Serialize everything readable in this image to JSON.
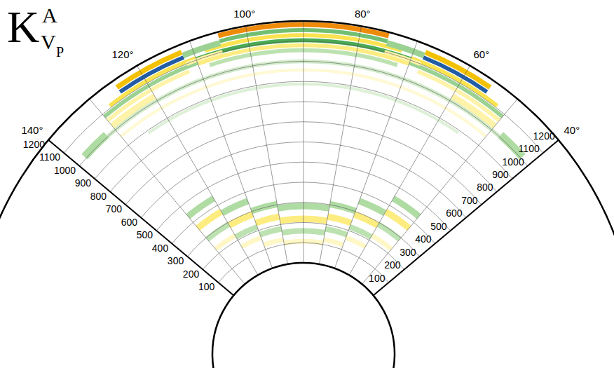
{
  "chart_data": {
    "type": "polar_heatmap",
    "title": {
      "text": "K",
      "superscript": "A",
      "subscript": "V",
      "subsubscript": "P"
    },
    "angle_lim": [
      40,
      140
    ],
    "angle_ticks": [
      {
        "value": 40,
        "label": "40°"
      },
      {
        "value": 60,
        "label": "60°"
      },
      {
        "value": 80,
        "label": "80°"
      },
      {
        "value": 100,
        "label": "100°"
      },
      {
        "value": 120,
        "label": "120°"
      },
      {
        "value": 140,
        "label": "140°"
      }
    ],
    "radius_lim": [
      0,
      1200
    ],
    "radius_ticks": [
      100,
      200,
      300,
      400,
      500,
      600,
      700,
      800,
      900,
      1000,
      1100,
      1200
    ],
    "grid": true,
    "tick_labels": true,
    "color_range": [
      -1,
      1
    ],
    "colors": [
      "#1b3fd0",
      "#2e9e3e",
      "#b6dfa8",
      "#ffffff",
      "#fff2a0",
      "#f5d300",
      "#e5201a"
    ],
    "cells": [
      [
        1170,
        1195,
        75,
        105,
        0.8
      ],
      [
        1145,
        1165,
        75,
        105,
        -0.5
      ],
      [
        1120,
        1140,
        72,
        108,
        0.5
      ],
      [
        1095,
        1115,
        70,
        110,
        -0.6
      ],
      [
        1070,
        1090,
        70,
        110,
        0.4
      ],
      [
        1045,
        1065,
        72,
        108,
        -0.3
      ],
      [
        1150,
        1175,
        55,
        68,
        0.7
      ],
      [
        1125,
        1145,
        55,
        68,
        -0.9
      ],
      [
        1100,
        1120,
        52,
        70,
        0.5
      ],
      [
        1075,
        1095,
        50,
        70,
        -0.4
      ],
      [
        1050,
        1070,
        50,
        68,
        0.3
      ],
      [
        1150,
        1175,
        112,
        125,
        0.7
      ],
      [
        1125,
        1145,
        112,
        125,
        -0.9
      ],
      [
        1100,
        1120,
        110,
        128,
        0.5
      ],
      [
        1075,
        1095,
        110,
        130,
        -0.4
      ],
      [
        1050,
        1070,
        112,
        130,
        0.3
      ],
      [
        1130,
        1160,
        68,
        75,
        -0.4
      ],
      [
        1090,
        1110,
        68,
        75,
        0.3
      ],
      [
        1130,
        1160,
        105,
        112,
        -0.4
      ],
      [
        1090,
        1110,
        105,
        112,
        0.3
      ],
      [
        1000,
        1040,
        120,
        130,
        0.3
      ],
      [
        1000,
        1040,
        50,
        60,
        0.3
      ],
      [
        990,
        1010,
        48,
        132,
        -0.2
      ],
      [
        950,
        965,
        50,
        130,
        0.15
      ],
      [
        880,
        895,
        55,
        125,
        -0.15
      ],
      [
        990,
        1030,
        132,
        138,
        -0.35
      ],
      [
        990,
        1030,
        42,
        48,
        -0.35
      ],
      [
        423,
        455,
        50,
        60,
        -0.35
      ],
      [
        339,
        371,
        60,
        70,
        -0.35
      ],
      [
        287,
        319,
        70,
        80,
        -0.35
      ],
      [
        266,
        298,
        80,
        90,
        -0.35
      ],
      [
        266,
        298,
        90,
        100,
        -0.35
      ],
      [
        287,
        319,
        100,
        110,
        -0.35
      ],
      [
        339,
        371,
        110,
        120,
        -0.35
      ],
      [
        423,
        455,
        120,
        130,
        -0.35
      ],
      [
        347,
        379,
        50,
        60,
        0.4
      ],
      [
        269,
        301,
        60,
        70,
        0.4
      ],
      [
        224,
        256,
        70,
        80,
        0.4
      ],
      [
        203,
        235,
        80,
        90,
        0.4
      ],
      [
        203,
        235,
        90,
        100,
        0.4
      ],
      [
        224,
        256,
        100,
        110,
        0.4
      ],
      [
        269,
        301,
        110,
        120,
        0.4
      ],
      [
        347,
        379,
        120,
        130,
        0.4
      ],
      [
        277,
        305,
        50,
        60,
        -0.3
      ],
      [
        205,
        233,
        60,
        70,
        -0.3
      ],
      [
        164,
        192,
        70,
        80,
        -0.3
      ],
      [
        145,
        173,
        80,
        90,
        -0.3
      ],
      [
        145,
        173,
        90,
        100,
        -0.3
      ],
      [
        164,
        192,
        100,
        110,
        -0.3
      ],
      [
        205,
        233,
        110,
        120,
        -0.3
      ],
      [
        277,
        305,
        120,
        130,
        -0.3
      ],
      [
        215,
        239,
        50,
        60,
        0.2
      ],
      [
        150,
        174,
        60,
        70,
        0.2
      ],
      [
        112,
        136,
        70,
        80,
        0.2
      ],
      [
        95,
        119,
        80,
        90,
        0.2
      ],
      [
        95,
        119,
        90,
        100,
        0.2
      ],
      [
        112,
        136,
        100,
        110,
        0.2
      ],
      [
        150,
        174,
        110,
        120,
        0.2
      ],
      [
        215,
        239,
        120,
        130,
        0.2
      ]
    ]
  }
}
